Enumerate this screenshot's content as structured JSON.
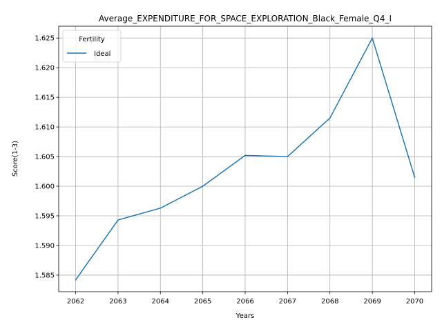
{
  "chart_data": {
    "type": "line",
    "title": "Average_EXPENDITURE_FOR_SPACE_EXPLORATION_Black_Female_Q4_I",
    "xlabel": "Years",
    "ylabel": "Score(1-3)",
    "x": [
      2062,
      2063,
      2064,
      2065,
      2066,
      2067,
      2068,
      2069,
      2070
    ],
    "xlim": [
      2061.6,
      2070.4
    ],
    "ylim": [
      1.5822,
      1.627
    ],
    "yticks": [
      1.585,
      1.59,
      1.595,
      1.6,
      1.605,
      1.61,
      1.615,
      1.62,
      1.625
    ],
    "ytick_labels": [
      "1.585",
      "1.590",
      "1.595",
      "1.600",
      "1.605",
      "1.610",
      "1.615",
      "1.620",
      "1.625"
    ],
    "xtick_labels": [
      "2062",
      "2063",
      "2064",
      "2065",
      "2066",
      "2067",
      "2068",
      "2069",
      "2070"
    ],
    "grid": true,
    "legend": {
      "title": "Fertility",
      "position": "top-left"
    },
    "series": [
      {
        "name": "Ideal",
        "color": "#1f77b4",
        "values": [
          1.5842,
          1.5943,
          1.5963,
          1.6,
          1.6052,
          1.605,
          1.6115,
          1.625,
          1.6015
        ]
      }
    ]
  }
}
